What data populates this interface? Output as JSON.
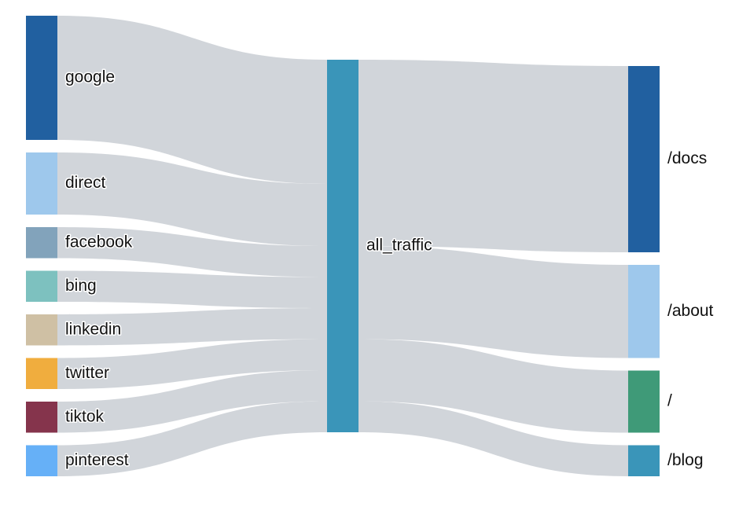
{
  "chart_data": {
    "type": "sankey",
    "nodes": [
      {
        "id": "google",
        "label": "google",
        "value": 8,
        "color": "#2160a0"
      },
      {
        "id": "direct",
        "label": "direct",
        "value": 4,
        "color": "#9ec8ec"
      },
      {
        "id": "facebook",
        "label": "facebook",
        "value": 2,
        "color": "#82a3bb"
      },
      {
        "id": "bing",
        "label": "bing",
        "value": 2,
        "color": "#7dc1bf"
      },
      {
        "id": "linkedin",
        "label": "linkedin",
        "value": 2,
        "color": "#cfc0a4"
      },
      {
        "id": "twitter",
        "label": "twitter",
        "value": 2,
        "color": "#f0ad3e"
      },
      {
        "id": "tiktok",
        "label": "tiktok",
        "value": 2,
        "color": "#85344c"
      },
      {
        "id": "pinterest",
        "label": "pinterest",
        "value": 2,
        "color": "#66b0f7"
      },
      {
        "id": "all_traffic",
        "label": "all_traffic",
        "value": 24,
        "color": "#3a95b9"
      },
      {
        "id": "docs",
        "label": "/docs",
        "value": 12,
        "color": "#2160a0"
      },
      {
        "id": "about",
        "label": "/about",
        "value": 6,
        "color": "#9ec8ec"
      },
      {
        "id": "home",
        "label": "/",
        "value": 4,
        "color": "#3f9a78"
      },
      {
        "id": "blog",
        "label": "/blog",
        "value": 2,
        "color": "#3a95b9"
      }
    ],
    "columns": [
      [
        "google",
        "direct",
        "facebook",
        "bing",
        "linkedin",
        "twitter",
        "tiktok",
        "pinterest"
      ],
      [
        "all_traffic"
      ],
      [
        "docs",
        "about",
        "home",
        "blog"
      ]
    ],
    "links": [
      {
        "source": "google",
        "target": "all_traffic",
        "value": 8
      },
      {
        "source": "direct",
        "target": "all_traffic",
        "value": 4
      },
      {
        "source": "facebook",
        "target": "all_traffic",
        "value": 2
      },
      {
        "source": "bing",
        "target": "all_traffic",
        "value": 2
      },
      {
        "source": "linkedin",
        "target": "all_traffic",
        "value": 2
      },
      {
        "source": "twitter",
        "target": "all_traffic",
        "value": 2
      },
      {
        "source": "tiktok",
        "target": "all_traffic",
        "value": 2
      },
      {
        "source": "pinterest",
        "target": "all_traffic",
        "value": 2
      },
      {
        "source": "all_traffic",
        "target": "docs",
        "value": 12
      },
      {
        "source": "all_traffic",
        "target": "about",
        "value": 6
      },
      {
        "source": "all_traffic",
        "target": "home",
        "value": 4
      },
      {
        "source": "all_traffic",
        "target": "blog",
        "value": 2
      }
    ],
    "link_color": "#d1d5da"
  }
}
